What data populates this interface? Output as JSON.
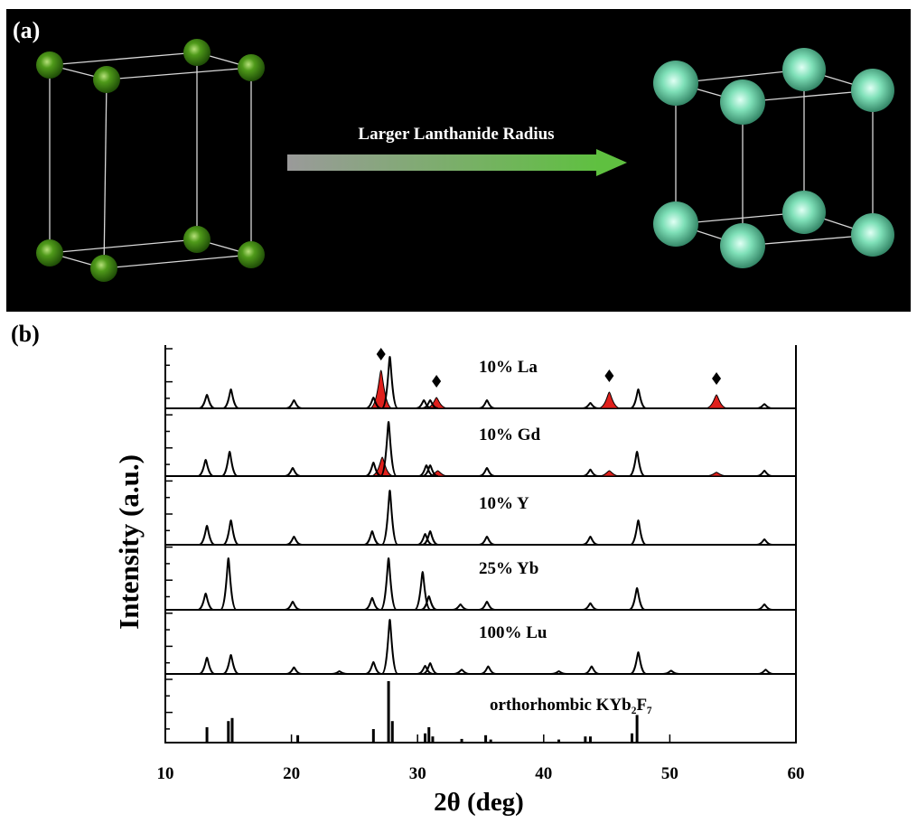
{
  "panel_a": {
    "label": "(a)",
    "arrow_text": "Larger Lanthanide Radius"
  },
  "panel_b_label": "(b)",
  "chart_data": {
    "type": "xrd-stack",
    "x_label": "2θ (deg)",
    "y_label": "Intensity (a.u.)",
    "xlim": [
      10,
      60
    ],
    "xticks": [
      10,
      20,
      30,
      40,
      50,
      60
    ],
    "series": [
      {
        "name": "10% La",
        "color": "#000000",
        "x": [
          13.3,
          15.2,
          20.2,
          26.5,
          27.8,
          30.5,
          31.0,
          35.5,
          43.7,
          47.5,
          57.5
        ],
        "values": [
          25,
          35,
          15,
          20,
          95,
          15,
          15,
          15,
          10,
          35,
          8
        ],
        "impurity": {
          "color": "#e0201c",
          "diamonds": true,
          "x": [
            27.1,
            31.5,
            45.2,
            53.7
          ],
          "values": [
            70,
            20,
            30,
            25
          ]
        }
      },
      {
        "name": "10% Gd",
        "color": "#000000",
        "x": [
          13.2,
          15.1,
          20.1,
          26.5,
          27.7,
          30.7,
          31.0,
          35.5,
          43.7,
          47.4,
          57.5
        ],
        "values": [
          30,
          45,
          15,
          25,
          100,
          20,
          20,
          15,
          12,
          45,
          10
        ],
        "impurity": {
          "color": "#e0201c",
          "diamonds": false,
          "x": [
            27.2,
            31.6,
            45.2,
            53.7
          ],
          "values": [
            35,
            10,
            10,
            7
          ]
        }
      },
      {
        "name": "10% Y",
        "color": "#000000",
        "x": [
          13.3,
          15.2,
          20.2,
          26.4,
          27.8,
          30.6,
          31.0,
          35.5,
          43.7,
          47.5,
          57.5
        ],
        "values": [
          35,
          45,
          15,
          25,
          100,
          20,
          25,
          15,
          15,
          45,
          10
        ]
      },
      {
        "name": "25% Yb",
        "color": "#000000",
        "x": [
          13.2,
          15.0,
          20.1,
          26.4,
          27.7,
          30.4,
          30.9,
          33.4,
          35.5,
          43.7,
          47.4,
          57.5
        ],
        "values": [
          30,
          95,
          15,
          22,
          95,
          70,
          25,
          10,
          15,
          12,
          40,
          10
        ]
      },
      {
        "name": "100% Lu",
        "color": "#000000",
        "x": [
          13.3,
          15.2,
          20.2,
          23.8,
          26.5,
          27.8,
          30.6,
          31.0,
          33.5,
          35.6,
          41.2,
          43.8,
          47.5,
          50.1,
          57.6
        ],
        "values": [
          30,
          35,
          12,
          5,
          22,
          100,
          15,
          20,
          8,
          14,
          5,
          14,
          40,
          6,
          8
        ]
      }
    ],
    "reference": {
      "name": "orthorhombic KYb₂F₇",
      "color": "#000000",
      "x": [
        13.3,
        15.0,
        15.3,
        20.5,
        26.5,
        27.7,
        28.0,
        30.6,
        30.9,
        31.2,
        33.5,
        35.4,
        35.8,
        41.2,
        43.3,
        43.7,
        47.0,
        47.4
      ],
      "values": [
        25,
        35,
        40,
        12,
        22,
        100,
        35,
        15,
        25,
        10,
        6,
        12,
        5,
        5,
        10,
        10,
        15,
        45
      ]
    }
  }
}
